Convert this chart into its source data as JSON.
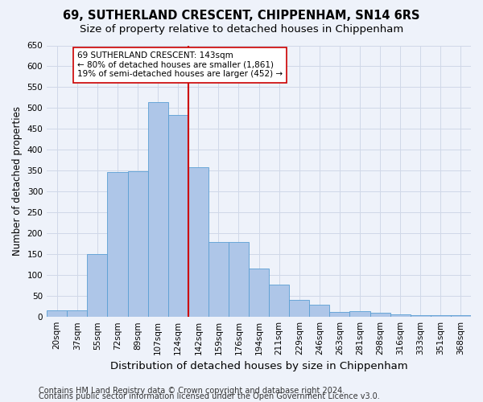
{
  "title1": "69, SUTHERLAND CRESCENT, CHIPPENHAM, SN14 6RS",
  "title2": "Size of property relative to detached houses in Chippenham",
  "xlabel": "Distribution of detached houses by size in Chippenham",
  "ylabel": "Number of detached properties",
  "categories": [
    "20sqm",
    "37sqm",
    "55sqm",
    "72sqm",
    "89sqm",
    "107sqm",
    "124sqm",
    "142sqm",
    "159sqm",
    "176sqm",
    "194sqm",
    "211sqm",
    "229sqm",
    "246sqm",
    "263sqm",
    "281sqm",
    "298sqm",
    "316sqm",
    "333sqm",
    "351sqm",
    "368sqm"
  ],
  "values": [
    15,
    15,
    150,
    347,
    348,
    515,
    483,
    358,
    180,
    180,
    115,
    77,
    40,
    30,
    12,
    13,
    10,
    7,
    4,
    4,
    4
  ],
  "bar_color": "#aec6e8",
  "bar_edge_color": "#5a9fd4",
  "vline_x_index": 7,
  "vline_color": "#cc0000",
  "annotation_text": "69 SUTHERLAND CRESCENT: 143sqm\n← 80% of detached houses are smaller (1,861)\n19% of semi-detached houses are larger (452) →",
  "annotation_box_color": "#ffffff",
  "annotation_box_edge": "#cc0000",
  "ylim": [
    0,
    650
  ],
  "yticks": [
    0,
    50,
    100,
    150,
    200,
    250,
    300,
    350,
    400,
    450,
    500,
    550,
    600,
    650
  ],
  "grid_color": "#d0d8e8",
  "background_color": "#eef2fa",
  "footer1": "Contains HM Land Registry data © Crown copyright and database right 2024.",
  "footer2": "Contains public sector information licensed under the Open Government Licence v3.0.",
  "title1_fontsize": 10.5,
  "title2_fontsize": 9.5,
  "xlabel_fontsize": 9.5,
  "ylabel_fontsize": 8.5,
  "tick_fontsize": 7.5,
  "footer_fontsize": 7.0,
  "ann_fontsize": 7.5
}
